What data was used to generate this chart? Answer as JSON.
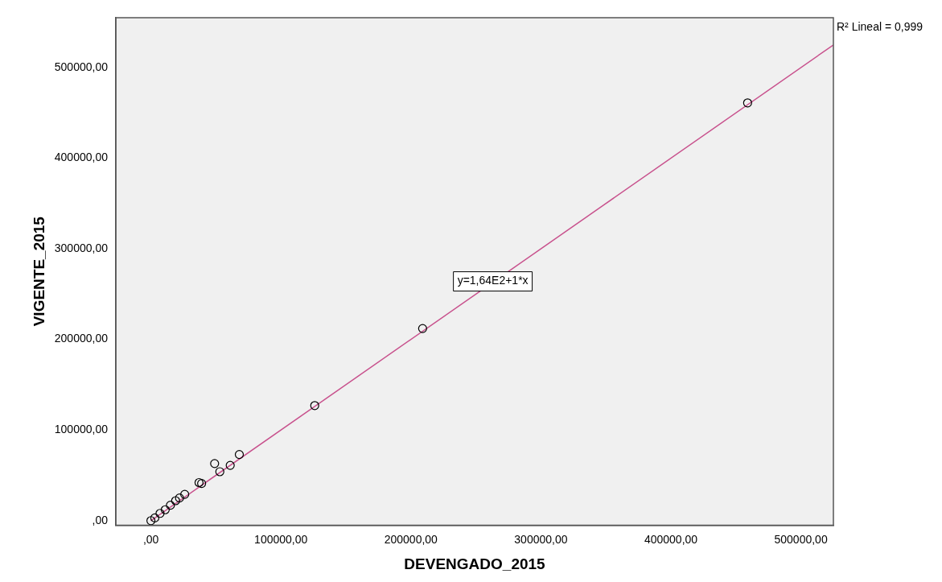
{
  "chart_data": {
    "type": "scatter",
    "xlabel": "DEVENGADO_2015",
    "ylabel": "VIGENTE_2015",
    "xlim": [
      -27000,
      525000
    ],
    "ylim": [
      -5000,
      555000
    ],
    "xticks": [
      {
        "value": 0,
        "label": ",00"
      },
      {
        "value": 100000,
        "label": "100000,00"
      },
      {
        "value": 200000,
        "label": "200000,00"
      },
      {
        "value": 300000,
        "label": "300000,00"
      },
      {
        "value": 400000,
        "label": "400000,00"
      },
      {
        "value": 500000,
        "label": "500000,00"
      }
    ],
    "yticks": [
      {
        "value": 0,
        "label": ",00"
      },
      {
        "value": 100000,
        "label": "100000,00"
      },
      {
        "value": 200000,
        "label": "200000,00"
      },
      {
        "value": 300000,
        "label": "300000,00"
      },
      {
        "value": 400000,
        "label": "400000,00"
      },
      {
        "value": 500000,
        "label": "500000,00"
      }
    ],
    "grid": false,
    "legend": false,
    "marker": "circle",
    "series": [
      {
        "color": "#000000",
        "x": [
          459000,
          209000,
          126000,
          68000,
          49000,
          61000,
          53000,
          37000,
          39000,
          26000,
          22000,
          19000,
          15000,
          11000,
          7000,
          3000,
          0
        ],
        "values": [
          461000,
          212000,
          127000,
          73000,
          63000,
          61000,
          54000,
          42000,
          41000,
          29000,
          25000,
          22000,
          17000,
          12000,
          8000,
          3000,
          0
        ]
      },
      {
        "type": "line",
        "color": "#c8508c",
        "line_style": "solid",
        "marker": "none",
        "x": [
          0,
          525000
        ],
        "values": [
          0,
          525000
        ]
      }
    ],
    "annotations": [
      {
        "text": "y=1,64E2+1*x",
        "x": 263000,
        "y": 264000
      },
      "R² Lineal = 0,999"
    ]
  }
}
